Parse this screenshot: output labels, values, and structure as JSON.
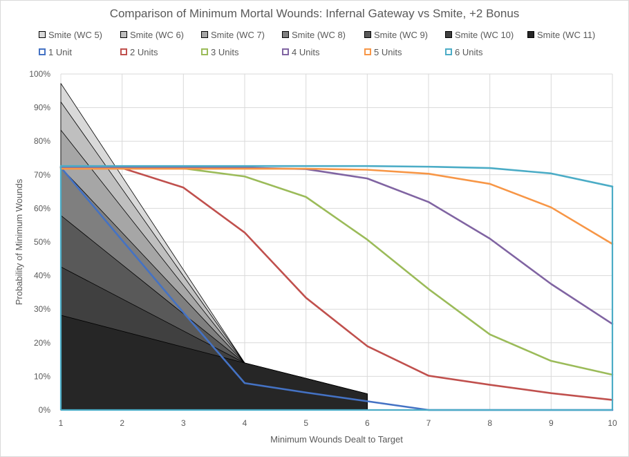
{
  "chart_data": {
    "type": "line",
    "title": "Comparison of Minimum Mortal Wounds: Infernal Gateway vs Smite, +2 Bonus",
    "xlabel": "Minimum  Wounds Dealt to Target",
    "ylabel": "Probability of Minimum  Wounds",
    "xlim": [
      1,
      10
    ],
    "ylim": [
      0,
      100
    ],
    "x_ticks": [
      "1",
      "2",
      "3",
      "4",
      "5",
      "6",
      "7",
      "8",
      "9",
      "10"
    ],
    "y_ticks": [
      "0%",
      "10%",
      "20%",
      "30%",
      "40%",
      "50%",
      "60%",
      "70%",
      "80%",
      "90%",
      "100%"
    ],
    "grid": true,
    "legend_position": "top",
    "area_series": [
      {
        "name": "Smite (WC 5)",
        "color": "#d9d9d9",
        "x": [
          1,
          4,
          5,
          6
        ],
        "values": [
          97.2,
          14.0,
          9.4,
          4.8
        ]
      },
      {
        "name": "Smite (WC 6)",
        "color": "#bfbfbf",
        "x": [
          1,
          4,
          5,
          6
        ],
        "values": [
          91.7,
          14.0,
          9.4,
          4.8
        ]
      },
      {
        "name": "Smite (WC 7)",
        "color": "#a6a6a6",
        "x": [
          1,
          4,
          5,
          6
        ],
        "values": [
          83.3,
          14.0,
          9.4,
          4.8
        ]
      },
      {
        "name": "Smite (WC 8)",
        "color": "#7f7f7f",
        "x": [
          1,
          4,
          5,
          6
        ],
        "values": [
          72.2,
          14.0,
          9.4,
          4.8
        ]
      },
      {
        "name": "Smite (WC 9)",
        "color": "#595959",
        "x": [
          1,
          4,
          5,
          6
        ],
        "values": [
          57.9,
          14.0,
          9.4,
          4.8
        ]
      },
      {
        "name": "Smite (WC 10)",
        "color": "#404040",
        "x": [
          1,
          4,
          5,
          6
        ],
        "values": [
          42.6,
          14.0,
          9.4,
          4.8
        ]
      },
      {
        "name": "Smite (WC 11)",
        "color": "#262626",
        "x": [
          1,
          4,
          5,
          6
        ],
        "values": [
          28.2,
          14.0,
          9.4,
          4.8
        ]
      }
    ],
    "line_series": [
      {
        "name": "1 Unit",
        "color": "#4472c4",
        "x": [
          1,
          2,
          3,
          4,
          5,
          6,
          7,
          8,
          9,
          10
        ],
        "values": [
          72.2,
          50.5,
          29.0,
          8.0,
          5.2,
          2.6,
          0,
          0,
          0,
          0
        ]
      },
      {
        "name": "2 Units",
        "color": "#c0504d",
        "x": [
          1,
          2,
          3,
          4,
          5,
          6,
          7,
          8,
          9,
          10
        ],
        "values": [
          72.2,
          72.0,
          66.2,
          52.8,
          33.4,
          19.0,
          10.2,
          7.5,
          5.0,
          3.0
        ]
      },
      {
        "name": "3 Units",
        "color": "#9bbb59",
        "x": [
          1,
          2,
          3,
          4,
          5,
          6,
          7,
          8,
          9,
          10
        ],
        "values": [
          72.2,
          72.2,
          71.9,
          69.5,
          63.4,
          50.7,
          36.0,
          22.5,
          14.6,
          10.5
        ]
      },
      {
        "name": "4 Units",
        "color": "#8064a2",
        "x": [
          1,
          2,
          3,
          4,
          5,
          6,
          7,
          8,
          9,
          10
        ],
        "values": [
          72.2,
          72.2,
          72.2,
          72.1,
          71.7,
          68.9,
          61.9,
          51.0,
          37.5,
          25.6
        ]
      },
      {
        "name": "5 Units",
        "color": "#f79646",
        "x": [
          1,
          2,
          3,
          4,
          5,
          6,
          7,
          8,
          9,
          10
        ],
        "values": [
          71.8,
          71.8,
          71.8,
          71.8,
          71.8,
          71.5,
          70.3,
          67.3,
          60.3,
          49.4
        ]
      },
      {
        "name": "6 Units",
        "color": "#4bacc6",
        "x": [
          1,
          2,
          3,
          4,
          5,
          6,
          7,
          8,
          9,
          10
        ],
        "values": [
          72.6,
          72.6,
          72.6,
          72.6,
          72.6,
          72.6,
          72.4,
          72.0,
          70.4,
          66.5
        ]
      }
    ]
  }
}
